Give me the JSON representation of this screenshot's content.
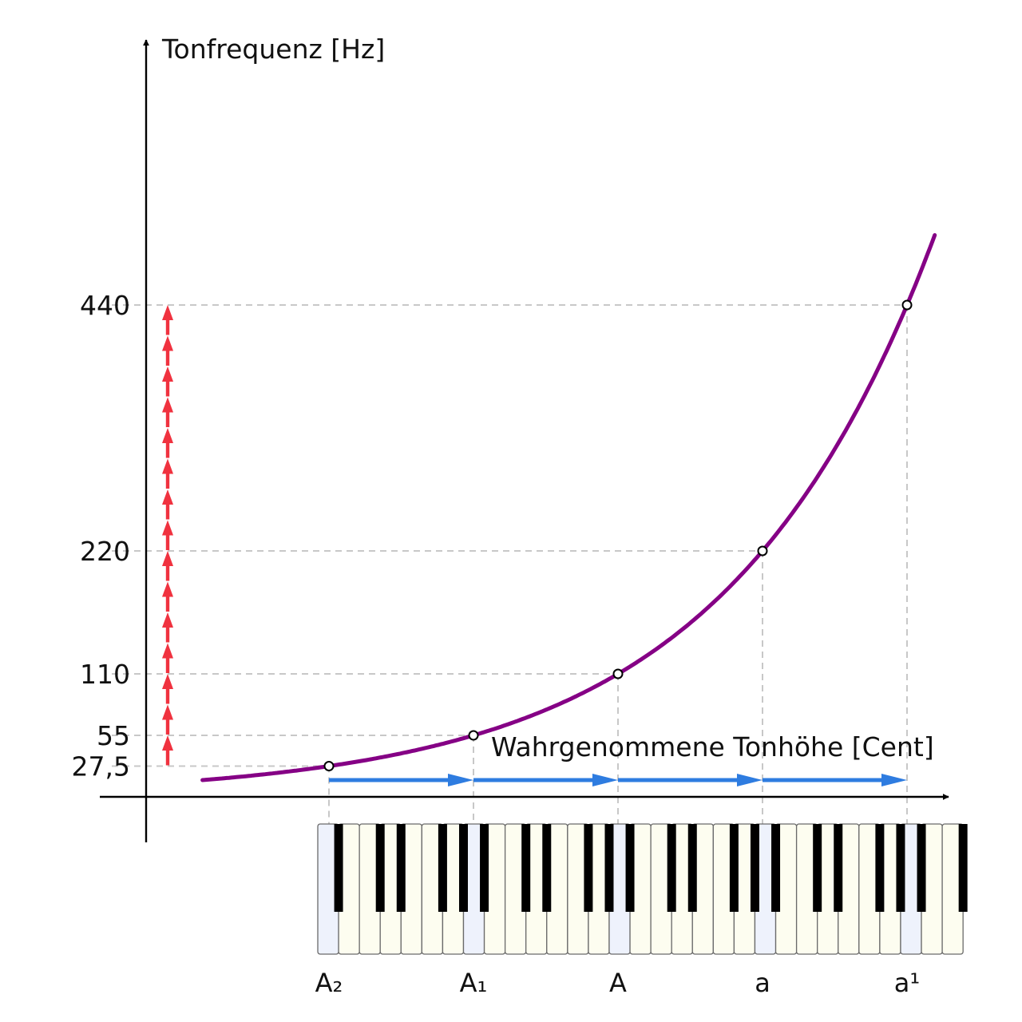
{
  "chart_data": {
    "type": "line",
    "ylabel": "Tonfrequenz [Hz]",
    "xlabel": "Wahrgenommene Tonhöhe [Cent]",
    "y_ticks": [
      "27,5",
      "55",
      "110",
      "220",
      "440"
    ],
    "x_tick_labels": [
      "A₂",
      "A₁",
      "A",
      "a",
      "a¹"
    ],
    "x": [
      0,
      1200,
      2400,
      3600,
      4800
    ],
    "y": [
      27.5,
      55,
      110,
      220,
      440
    ],
    "series": [
      {
        "values": [
          27.5,
          55,
          110,
          220,
          440
        ]
      }
    ],
    "curve": "exponential",
    "x_range": [
      -1200,
      5000
    ],
    "y_range": [
      0,
      540
    ],
    "grid": "dashed guide lines at marked points",
    "colors": {
      "curve": "#850085",
      "red_arrows": "#f0323f",
      "blue_arrows": "#2e7ce0",
      "guide": "#c8c8c8",
      "axis": "#000000",
      "white_key": "#fdfdf0",
      "a_key": "#eef2fc",
      "black_key": "#000000"
    },
    "red_arrow_count": 15,
    "octave_arrow_count": 4
  }
}
